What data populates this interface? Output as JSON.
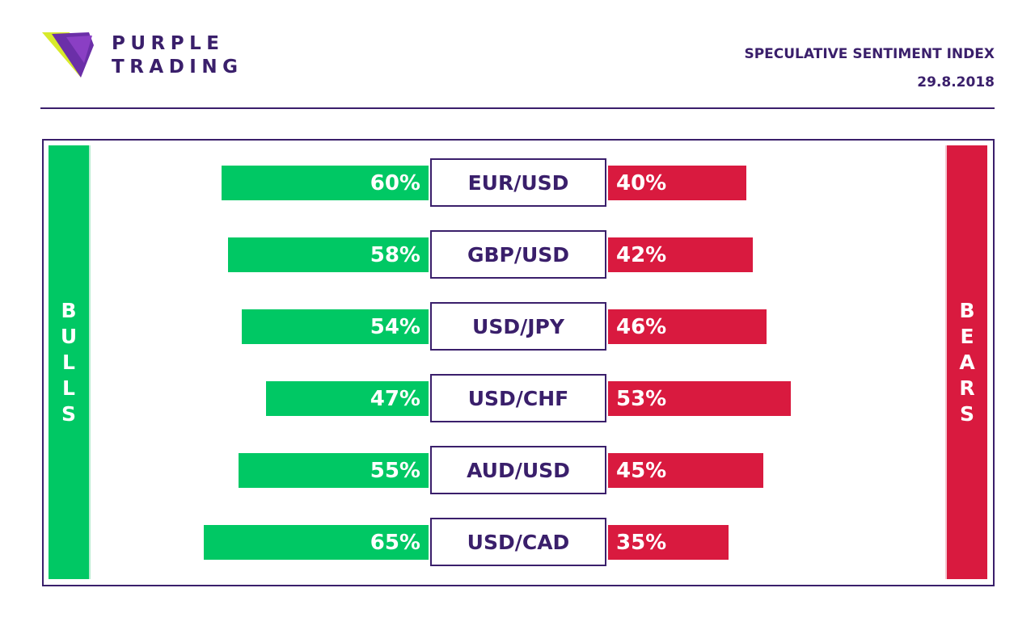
{
  "brand": {
    "line1": "PURPLE",
    "line2": "TRADING",
    "accent": "#3a1f6b"
  },
  "header": {
    "title": "SPECULATIVE SENTIMENT INDEX",
    "date": "29.8.2018"
  },
  "labels": {
    "bulls": "BULLS",
    "bears": "BEARS"
  },
  "colors": {
    "bulls": "#00c864",
    "bears": "#d91a3f"
  },
  "chart_data": {
    "type": "bar",
    "categories": [
      "EUR/USD",
      "GBP/USD",
      "USD/JPY",
      "USD/CHF",
      "AUD/USD",
      "USD/CAD"
    ],
    "series": [
      {
        "name": "BULLS",
        "values": [
          60,
          58,
          54,
          47,
          55,
          65
        ]
      },
      {
        "name": "BEARS",
        "values": [
          40,
          42,
          46,
          53,
          45,
          35
        ]
      }
    ],
    "unit": "%"
  }
}
